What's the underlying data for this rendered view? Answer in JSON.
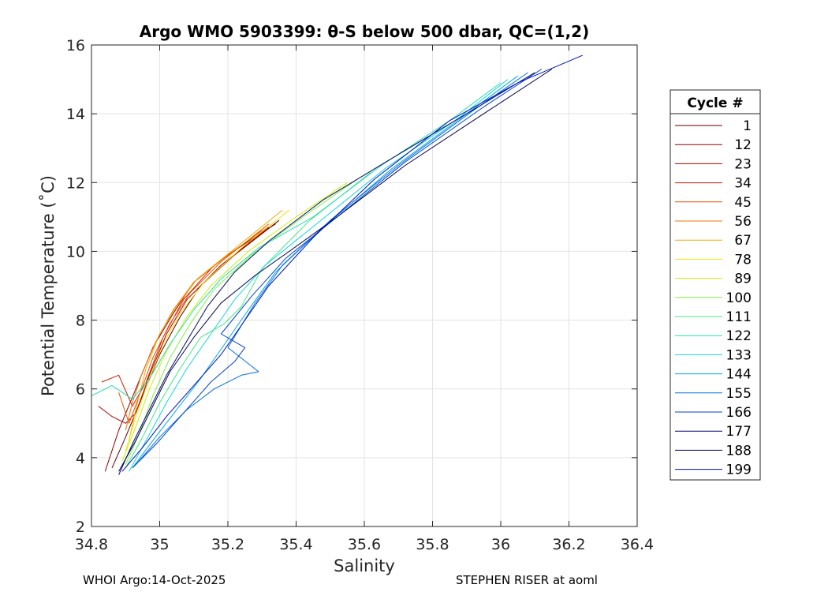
{
  "chart_data": {
    "type": "line",
    "title": "Argo WMO 5903399: θ-S below 500 dbar,  QC=(1,2)",
    "xlabel": "Salinity",
    "ylabel": "Potential Temperature (˚C)",
    "xlim": [
      34.8,
      36.4
    ],
    "ylim": [
      2,
      16
    ],
    "xticks": [
      "34.8",
      "35",
      "35.2",
      "35.4",
      "35.6",
      "35.8",
      "36",
      "36.2",
      "36.4"
    ],
    "yticks": [
      "2",
      "4",
      "6",
      "8",
      "10",
      "12",
      "14",
      "16"
    ],
    "grid": true,
    "legend": {
      "title": "Cycle #",
      "placement": "right",
      "entries": [
        {
          "label": "1",
          "color": "#600000"
        },
        {
          "label": "12",
          "color": "#8a0000"
        },
        {
          "label": "23",
          "color": "#b00000"
        },
        {
          "label": "34",
          "color": "#d41800"
        },
        {
          "label": "45",
          "color": "#e85000"
        },
        {
          "label": "56",
          "color": "#f07800"
        },
        {
          "label": "67",
          "color": "#f5a800"
        },
        {
          "label": "78",
          "color": "#f8e000"
        },
        {
          "label": "89",
          "color": "#c8f000"
        },
        {
          "label": "100",
          "color": "#80f040"
        },
        {
          "label": "111",
          "color": "#40e880"
        },
        {
          "label": "122",
          "color": "#20e0b0"
        },
        {
          "label": "133",
          "color": "#10d8e0"
        },
        {
          "label": "144",
          "color": "#00a8e8"
        },
        {
          "label": "155",
          "color": "#0070e0"
        },
        {
          "label": "166",
          "color": "#0040d0"
        },
        {
          "label": "177",
          "color": "#000870"
        },
        {
          "label": "188",
          "color": "#000050"
        },
        {
          "label": "199",
          "color": "#0010c0"
        }
      ]
    },
    "series": [
      {
        "cycle": "1",
        "x": [
          34.86,
          34.9,
          34.95,
          35.0,
          35.06,
          35.12,
          35.22,
          35.35
        ],
        "y": [
          3.7,
          4.6,
          5.8,
          7.0,
          8.1,
          9.0,
          9.9,
          10.9
        ]
      },
      {
        "cycle": "12",
        "x": [
          34.84,
          34.88,
          34.93,
          34.98,
          35.04,
          35.1,
          35.2,
          35.34
        ],
        "y": [
          3.6,
          4.8,
          6.0,
          7.2,
          8.2,
          9.1,
          9.9,
          10.8
        ]
      },
      {
        "cycle": "23",
        "x": [
          34.82,
          34.86,
          34.9,
          34.93,
          34.97,
          35.02,
          35.08,
          35.18,
          35.32
        ],
        "y": [
          5.5,
          5.2,
          5.0,
          5.3,
          6.4,
          7.6,
          8.6,
          9.6,
          10.7
        ]
      },
      {
        "cycle": "34",
        "x": [
          34.83,
          34.88,
          34.92,
          34.96,
          35.01,
          35.07,
          35.16,
          35.3
        ],
        "y": [
          6.2,
          6.4,
          5.5,
          6.2,
          7.5,
          8.6,
          9.6,
          10.6
        ]
      },
      {
        "cycle": "45",
        "x": [
          34.88,
          34.91,
          34.94,
          34.98,
          35.03,
          35.09,
          35.18,
          35.32
        ],
        "y": [
          5.9,
          5.0,
          5.8,
          6.9,
          7.9,
          8.8,
          9.7,
          10.8
        ]
      },
      {
        "cycle": "56",
        "x": [
          34.9,
          34.92,
          34.95,
          34.99,
          35.04,
          35.1,
          35.2,
          35.33
        ],
        "y": [
          4.8,
          5.6,
          6.5,
          7.4,
          8.3,
          9.1,
          9.9,
          10.8
        ]
      },
      {
        "cycle": "67",
        "x": [
          34.91,
          34.93,
          34.96,
          35.0,
          35.05,
          35.11,
          35.21,
          35.36
        ],
        "y": [
          4.5,
          5.4,
          6.6,
          7.6,
          8.4,
          9.2,
          10.0,
          11.2
        ]
      },
      {
        "cycle": "78",
        "x": [
          34.9,
          34.93,
          34.97,
          35.01,
          35.06,
          35.13,
          35.24,
          35.38
        ],
        "y": [
          4.2,
          5.2,
          6.3,
          7.3,
          8.2,
          9.1,
          10.1,
          11.2
        ]
      },
      {
        "cycle": "89",
        "x": [
          34.89,
          34.93,
          34.97,
          35.02,
          35.08,
          35.15,
          35.26,
          35.4,
          35.55
        ],
        "y": [
          3.9,
          4.9,
          6.0,
          7.1,
          8.1,
          9.0,
          10.0,
          11.0,
          12.0
        ]
      },
      {
        "cycle": "100",
        "x": [
          34.9,
          34.94,
          34.98,
          35.03,
          35.09,
          35.16,
          35.27,
          35.42,
          35.58
        ],
        "y": [
          3.8,
          4.7,
          5.8,
          6.9,
          7.9,
          8.9,
          9.9,
          11.0,
          12.1
        ]
      },
      {
        "cycle": "111",
        "x": [
          34.9,
          34.95,
          35.0,
          35.06,
          35.12,
          35.19,
          35.24,
          35.3,
          35.44,
          35.62
        ],
        "y": [
          3.7,
          4.6,
          5.6,
          6.6,
          7.5,
          7.9,
          8.4,
          9.5,
          10.9,
          12.3
        ]
      },
      {
        "cycle": "122",
        "x": [
          34.8,
          34.86,
          34.92,
          34.97,
          35.03,
          35.1,
          35.18,
          35.29,
          35.45,
          35.65,
          35.85,
          36.0
        ],
        "y": [
          5.8,
          6.1,
          5.7,
          6.3,
          7.3,
          8.3,
          9.2,
          10.1,
          11.0,
          12.5,
          13.8,
          14.9
        ]
      },
      {
        "cycle": "133",
        "x": [
          34.91,
          34.96,
          35.02,
          35.08,
          35.15,
          35.22,
          35.31,
          35.46,
          35.66,
          35.88,
          36.02
        ],
        "y": [
          3.6,
          4.5,
          5.6,
          6.6,
          7.6,
          8.6,
          9.6,
          10.8,
          12.4,
          13.9,
          15.0
        ]
      },
      {
        "cycle": "144",
        "x": [
          34.92,
          34.98,
          35.05,
          35.12,
          35.19,
          35.26,
          35.34,
          35.48,
          35.68,
          35.9,
          36.05
        ],
        "y": [
          3.7,
          4.5,
          5.4,
          6.3,
          7.3,
          8.3,
          9.4,
          10.7,
          12.4,
          14.0,
          15.1
        ]
      },
      {
        "cycle": "155",
        "x": [
          34.93,
          35.0,
          35.08,
          35.16,
          35.24,
          35.29,
          35.2,
          35.28,
          35.36,
          35.5,
          35.7,
          35.92,
          36.08
        ],
        "y": [
          3.8,
          4.6,
          5.4,
          6.0,
          6.4,
          6.5,
          7.2,
          8.5,
          9.6,
          10.9,
          12.5,
          14.1,
          15.2
        ]
      },
      {
        "cycle": "166",
        "x": [
          34.92,
          34.99,
          35.07,
          35.15,
          35.22,
          35.25,
          35.18,
          35.27,
          35.37,
          35.52,
          35.72,
          35.95,
          36.12
        ],
        "y": [
          3.7,
          4.4,
          5.3,
          6.2,
          6.8,
          7.2,
          7.6,
          8.7,
          9.8,
          11.0,
          12.6,
          14.2,
          15.3
        ]
      },
      {
        "cycle": "177",
        "x": [
          34.88,
          34.92,
          34.97,
          35.02,
          35.08,
          35.14,
          35.22,
          35.32,
          35.48,
          35.68,
          35.9,
          36.1
        ],
        "y": [
          3.5,
          4.4,
          5.4,
          6.4,
          7.4,
          8.4,
          9.4,
          10.3,
          11.5,
          12.7,
          14.0,
          15.2
        ]
      },
      {
        "cycle": "188",
        "x": [
          34.88,
          34.93,
          34.98,
          35.03,
          35.1,
          35.18,
          35.28,
          35.38,
          35.52,
          35.72,
          35.95,
          36.15
        ],
        "y": [
          3.6,
          4.5,
          5.5,
          6.5,
          7.5,
          8.5,
          9.3,
          10.0,
          11.0,
          12.5,
          14.0,
          15.3
        ]
      },
      {
        "cycle": "199",
        "x": [
          34.89,
          34.95,
          35.02,
          35.1,
          35.18,
          35.25,
          35.32,
          35.45,
          35.63,
          35.85,
          36.05,
          36.24
        ],
        "y": [
          3.6,
          4.3,
          5.2,
          6.1,
          7.0,
          8.0,
          9.0,
          10.4,
          12.1,
          13.8,
          14.9,
          15.7
        ]
      }
    ]
  },
  "footer": {
    "left": "WHOI Argo:14-Oct-2025",
    "right": "STEPHEN RISER at aoml"
  }
}
